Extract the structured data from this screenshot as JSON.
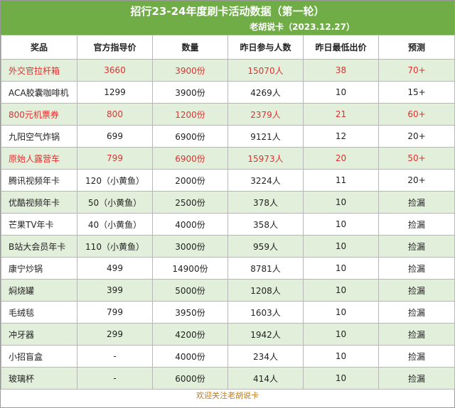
{
  "header": {
    "title": "招行23-24年度刷卡活动数据（第一轮）",
    "subtitle": "老胡说卡（2023.12.27）"
  },
  "table": {
    "columns": [
      "奖品",
      "官方指导价",
      "数量",
      "昨日参与人数",
      "昨日最低出价",
      "预测"
    ],
    "rows": [
      {
        "cells": [
          "外交官拉杆箱",
          "3660",
          "3900份",
          "15070人",
          "38",
          "70+"
        ],
        "highlight": true
      },
      {
        "cells": [
          "ACA胶囊咖啡机",
          "1299",
          "3900份",
          "4269人",
          "10",
          "15+"
        ],
        "highlight": false
      },
      {
        "cells": [
          "800元机票券",
          "800",
          "1200份",
          "2379人",
          "21",
          "60+"
        ],
        "highlight": true
      },
      {
        "cells": [
          "九阳空气炸锅",
          "699",
          "6900份",
          "9121人",
          "12",
          "20+"
        ],
        "highlight": false
      },
      {
        "cells": [
          "原始人露营车",
          "799",
          "6900份",
          "15973人",
          "20",
          "50+"
        ],
        "highlight": true
      },
      {
        "cells": [
          "腾讯视频年卡",
          "120（小黄鱼）",
          "2000份",
          "3224人",
          "11",
          "20+"
        ],
        "highlight": false
      },
      {
        "cells": [
          "优酷视频年卡",
          "50（小黄鱼）",
          "2500份",
          "378人",
          "10",
          "捡漏"
        ],
        "highlight": false
      },
      {
        "cells": [
          "芒果TV年卡",
          "40（小黄鱼）",
          "4000份",
          "358人",
          "10",
          "捡漏"
        ],
        "highlight": false
      },
      {
        "cells": [
          "B站大会员年卡",
          "110（小黄鱼）",
          "3000份",
          "959人",
          "10",
          "捡漏"
        ],
        "highlight": false
      },
      {
        "cells": [
          "康宁炒锅",
          "499",
          "14900份",
          "8781人",
          "10",
          "捡漏"
        ],
        "highlight": false
      },
      {
        "cells": [
          "焖烧罐",
          "399",
          "5000份",
          "1208人",
          "10",
          "捡漏"
        ],
        "highlight": false
      },
      {
        "cells": [
          "毛绒毯",
          "799",
          "3950份",
          "1603人",
          "10",
          "捡漏"
        ],
        "highlight": false
      },
      {
        "cells": [
          "冲牙器",
          "299",
          "4200份",
          "1942人",
          "10",
          "捡漏"
        ],
        "highlight": false
      },
      {
        "cells": [
          "小招盲盒",
          "-",
          "4000份",
          "234人",
          "10",
          "捡漏"
        ],
        "highlight": false
      },
      {
        "cells": [
          "玻璃杯",
          "-",
          "6000份",
          "414人",
          "10",
          "捡漏"
        ],
        "highlight": false
      }
    ]
  },
  "footer": {
    "text": "欢迎关注老胡说卡"
  },
  "colors": {
    "header_green": "#70ad47",
    "row_shade": "#e2efda",
    "highlight_red": "#e03030",
    "footer_text": "#c07a1a"
  }
}
